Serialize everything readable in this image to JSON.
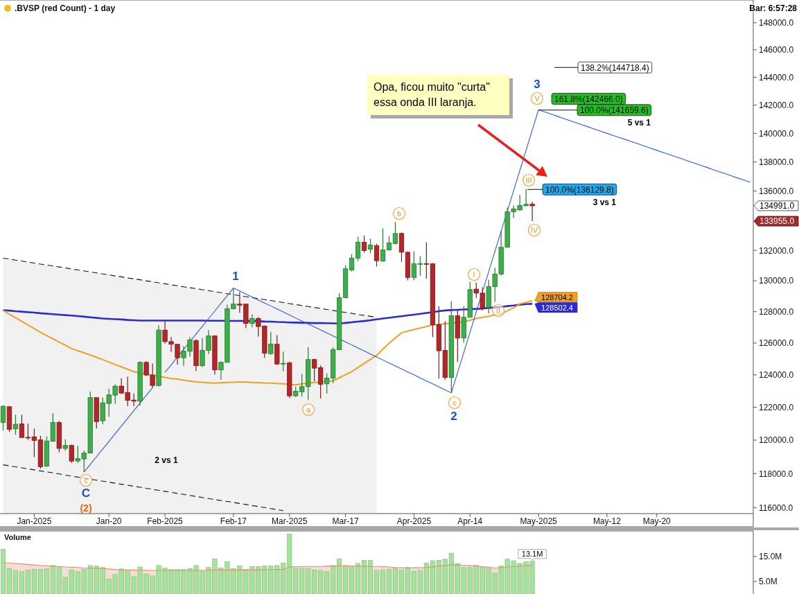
{
  "chart_data": [
    {
      "type": "candlestick",
      "title": ".BVSP (red Count) - 1 day",
      "categories": [
        null,
        null,
        null,
        null,
        null,
        "Jan-2025",
        null,
        null,
        null,
        null,
        null,
        null,
        null,
        null,
        null,
        null,
        null,
        "Jan-20",
        null,
        null,
        null,
        null,
        null,
        null,
        null,
        null,
        "Feb-2025",
        null,
        null,
        null,
        null,
        null,
        null,
        null,
        null,
        null,
        null,
        "Feb-17",
        null,
        null,
        null,
        null,
        null,
        null,
        null,
        null,
        "Mar-2025",
        null,
        null,
        null,
        null,
        null,
        null,
        null,
        null,
        "Mar-17",
        null,
        null,
        null,
        null,
        null,
        null,
        null,
        null,
        null,
        null,
        "Apr-2025",
        null,
        null,
        null,
        null,
        null,
        null,
        null,
        null,
        "Apr-14",
        null,
        null,
        null,
        null,
        null,
        null,
        null,
        null,
        null,
        null,
        "May-2025",
        null,
        null,
        null,
        null,
        null,
        null,
        null,
        null,
        null,
        null,
        "May-12",
        null,
        null,
        null,
        null,
        null,
        null,
        null,
        "May-20",
        null,
        null,
        null,
        null,
        null,
        null,
        null,
        null,
        null,
        null,
        null,
        null,
        null,
        null,
        null
      ],
      "ohlc": [
        [
          121070,
          122130,
          120580,
          122060
        ],
        [
          122030,
          122060,
          120490,
          120650
        ],
        [
          120680,
          121540,
          120330,
          120960
        ],
        [
          120980,
          121540,
          120150,
          120160
        ],
        [
          120170,
          121000,
          120020,
          120130
        ],
        [
          120200,
          120700,
          118980,
          119980
        ],
        [
          120020,
          120260,
          118300,
          118410
        ],
        [
          118440,
          120230,
          118410,
          119950
        ],
        [
          119930,
          121640,
          119900,
          121070
        ],
        [
          121070,
          121160,
          119260,
          119500
        ],
        [
          119500,
          120050,
          119360,
          119680
        ],
        [
          119680,
          119730,
          118640,
          118740
        ],
        [
          118750,
          119650,
          118640,
          118890
        ],
        [
          118870,
          119370,
          118090,
          119220
        ],
        [
          119220,
          122960,
          119200,
          122590
        ],
        [
          122590,
          122600,
          120700,
          121120
        ],
        [
          121170,
          122600,
          120960,
          122270
        ],
        [
          122230,
          123130,
          121420,
          122760
        ],
        [
          122740,
          123410,
          122200,
          123300
        ],
        [
          123300,
          123800,
          122810,
          122870
        ],
        [
          122910,
          123890,
          122060,
          122420
        ],
        [
          122440,
          122840,
          122060,
          122370
        ],
        [
          122370,
          124850,
          122100,
          124780
        ],
        [
          124780,
          124850,
          123920,
          123990
        ],
        [
          123990,
          124710,
          123200,
          123340
        ],
        [
          123340,
          127120,
          123270,
          126820
        ],
        [
          126820,
          127420,
          125970,
          126090
        ],
        [
          126090,
          126380,
          125440,
          125920
        ],
        [
          125920,
          125930,
          124640,
          125070
        ],
        [
          125070,
          125800,
          124570,
          125480
        ],
        [
          125480,
          126380,
          125140,
          126190
        ],
        [
          126160,
          126240,
          124230,
          124570
        ],
        [
          124570,
          126310,
          124490,
          125540
        ],
        [
          125540,
          126820,
          125290,
          126450
        ],
        [
          126450,
          126460,
          124030,
          124310
        ],
        [
          124310,
          124840,
          123700,
          124780
        ],
        [
          124780,
          128450,
          124760,
          128190
        ],
        [
          128190,
          129530,
          128150,
          128490
        ],
        [
          128490,
          129270,
          127930,
          128420
        ],
        [
          128490,
          128500,
          126940,
          127240
        ],
        [
          127240,
          127830,
          127000,
          127560
        ],
        [
          127560,
          127650,
          126410,
          127050
        ],
        [
          127080,
          127120,
          125070,
          125360
        ],
        [
          125330,
          126710,
          125260,
          125940
        ],
        [
          125920,
          126500,
          124620,
          124680
        ],
        [
          124700,
          125460,
          124230,
          124720
        ],
        [
          124750,
          124840,
          122560,
          122700
        ],
        [
          122700,
          123270,
          122630,
          122980
        ],
        [
          122950,
          124060,
          122650,
          123270
        ],
        [
          123270,
          125740,
          122460,
          124960
        ],
        [
          124960,
          125010,
          123600,
          124420
        ],
        [
          124450,
          124590,
          122530,
          123410
        ],
        [
          123440,
          124090,
          122840,
          123800
        ],
        [
          123800,
          125720,
          123490,
          125580
        ],
        [
          125580,
          129200,
          125560,
          128900
        ],
        [
          128900,
          131020,
          128860,
          130790
        ],
        [
          130710,
          131760,
          130620,
          131490
        ],
        [
          131490,
          132910,
          131300,
          132540
        ],
        [
          132540,
          133000,
          131850,
          131990
        ],
        [
          132080,
          132770,
          131810,
          132360
        ],
        [
          132310,
          132450,
          130940,
          131320
        ],
        [
          131290,
          133470,
          131260,
          132040
        ],
        [
          132040,
          132960,
          131990,
          132500
        ],
        [
          132460,
          133900,
          132390,
          133130
        ],
        [
          133130,
          133190,
          131240,
          131880
        ],
        [
          131880,
          131930,
          130030,
          130220
        ],
        [
          130220,
          131940,
          130030,
          131120
        ],
        [
          131100,
          131620,
          130330,
          131130
        ],
        [
          131130,
          132540,
          130140,
          131100
        ],
        [
          131120,
          131160,
          126380,
          127160
        ],
        [
          127160,
          128350,
          123770,
          125510
        ],
        [
          125540,
          127390,
          123700,
          123840
        ],
        [
          123840,
          128680,
          122880,
          127740
        ],
        [
          127740,
          128100,
          124810,
          126310
        ],
        [
          126310,
          128350,
          126020,
          127640
        ],
        [
          127640,
          129930,
          127610,
          129430
        ],
        [
          129460,
          129880,
          128870,
          129200
        ],
        [
          129200,
          129580,
          128080,
          128230
        ],
        [
          128280,
          130070,
          127890,
          129620
        ],
        [
          129620,
          130860,
          128630,
          130440
        ],
        [
          130440,
          133310,
          130350,
          132210
        ],
        [
          132210,
          134870,
          132170,
          134590
        ],
        [
          134590,
          135010,
          134170,
          134780
        ],
        [
          134710,
          135730,
          134690,
          135020
        ],
        [
          135000,
          136130,
          134950,
          135100
        ],
        [
          135100,
          135260,
          133955,
          134991
        ],
        null,
        null,
        null,
        null,
        null,
        null,
        null,
        null,
        null,
        null,
        null,
        null,
        null,
        null,
        null,
        null,
        null,
        null,
        null,
        null,
        null,
        null,
        null,
        null,
        null,
        null,
        null,
        null,
        null,
        null,
        null,
        null,
        null,
        null,
        null
      ],
      "colors": [
        "#3caf49",
        "#b3262a",
        "#3caf49",
        "#b3262a",
        "#b3262a",
        "#b3262a",
        "#b3262a",
        "#3caf49",
        "#3caf49",
        "#b3262a",
        "#3caf49",
        "#b3262a",
        "#3caf49",
        "#3caf49",
        "#3caf49",
        "#b3262a",
        "#3caf49",
        "#3caf49",
        "#3caf49",
        "#b3262a",
        "#b3262a",
        "#b3262a",
        "#3caf49",
        "#b3262a",
        "#b3262a",
        "#3caf49",
        "#b3262a",
        "#b3262a",
        "#b3262a",
        "#3caf49",
        "#3caf49",
        "#b3262a",
        "#3caf49",
        "#3caf49",
        "#b3262a",
        "#3caf49",
        "#3caf49",
        "#3caf49",
        "#b3262a",
        "#b3262a",
        "#3caf49",
        "#b3262a",
        "#b3262a",
        "#3caf49",
        "#b3262a",
        "#3caf49",
        "#b3262a",
        "#3caf49",
        "#3caf49",
        "#3caf49",
        "#b3262a",
        "#b3262a",
        "#3caf49",
        "#3caf49",
        "#3caf49",
        "#3caf49",
        "#3caf49",
        "#3caf49",
        "#b3262a",
        "#3caf49",
        "#b3262a",
        "#3caf49",
        "#3caf49",
        "#3caf49",
        "#b3262a",
        "#b3262a",
        "#3caf49",
        "#3caf49",
        "#b3262a",
        "#b3262a",
        "#b3262a",
        "#b3262a",
        "#3caf49",
        "#b3262a",
        "#3caf49",
        "#3caf49",
        "#b3262a",
        "#b3262a",
        "#3caf49",
        "#3caf49",
        "#3caf49",
        "#3caf49",
        "#3caf49",
        "#3caf49",
        "#3caf49",
        "#b3262a",
        null,
        null,
        null,
        null,
        null,
        null,
        null,
        null,
        null,
        null,
        null,
        null,
        null,
        null,
        null,
        null,
        null,
        null,
        null,
        null,
        null,
        null,
        null,
        null,
        null,
        null,
        null,
        null,
        null,
        null,
        null,
        null,
        null,
        null,
        null
      ],
      "ylim": [
        115650,
        149700
      ],
      "yticks": [
        {
          "value": 116000,
          "label": "116000.0"
        },
        {
          "value": 118000,
          "label": "118000.0"
        },
        {
          "value": 120000,
          "label": "120000.0"
        },
        {
          "value": 122000,
          "label": "122000.0"
        },
        {
          "value": 124000,
          "label": "124000.0"
        },
        {
          "value": 126000,
          "label": "126000.0"
        },
        {
          "value": 128000,
          "label": "128000.0"
        },
        {
          "value": 130000,
          "label": "130000.0"
        },
        {
          "value": 132000,
          "label": "132000.0"
        },
        {
          "value": 136000,
          "label": "136000.0"
        },
        {
          "value": 138000,
          "label": "138000.0"
        },
        {
          "value": 140000,
          "label": "140000.0"
        },
        {
          "value": 142000,
          "label": "142000.0"
        },
        {
          "value": 144000,
          "label": "144000.0"
        },
        {
          "value": 146000,
          "label": "146000.0"
        },
        {
          "value": 148000,
          "label": "148000.0"
        }
      ],
      "log": true,
      "series": [
        {
          "type": "area",
          "color": "#111111",
          "line_style": "dashed",
          "values": [
            131490,
            131430,
            131360,
            131300,
            131230,
            131170,
            131100,
            131040,
            130970,
            130910,
            130840,
            130780,
            130710,
            130650,
            130580,
            130520,
            130450,
            130390,
            130320,
            130260,
            130190,
            130130,
            130070,
            130000,
            129940,
            129870,
            129810,
            129740,
            129680,
            129610,
            129550,
            129490,
            129420,
            129360,
            129290,
            129230,
            129160,
            129100,
            129040,
            128970,
            128910,
            128840,
            128780,
            128720,
            128650,
            128590,
            128520,
            128460,
            128400,
            128330,
            128270,
            128210,
            128140,
            128080,
            128010,
            127950,
            127890,
            127820,
            127760,
            127700,
            127630,
            null,
            null,
            null,
            null,
            null,
            null,
            null,
            null,
            null,
            null,
            null,
            null,
            null,
            null,
            null,
            null,
            null,
            null,
            null,
            null,
            null,
            null,
            null,
            null,
            null,
            null,
            null,
            null,
            null,
            null,
            null,
            null,
            null,
            null,
            null,
            null,
            null,
            null,
            null,
            null,
            null,
            null,
            null,
            null,
            null,
            null,
            null,
            null,
            null,
            null,
            null,
            null,
            null,
            null,
            null,
            null,
            null,
            null,
            null,
            null
          ]
        },
        {
          "type": "line",
          "color": "#2b2bd6",
          "values": [
            128100,
            128070,
            128030,
            128000,
            127970,
            127940,
            127900,
            127870,
            127840,
            127810,
            127780,
            127750,
            127720,
            127680,
            127640,
            127600,
            127560,
            127540,
            127520,
            127500,
            127470,
            127450,
            127430,
            127430,
            127430,
            127430,
            127430,
            127430,
            127430,
            127430,
            127430,
            127430,
            127430,
            127420,
            127420,
            127420,
            127410,
            127410,
            127410,
            127400,
            127400,
            127390,
            127370,
            127360,
            127340,
            127330,
            127310,
            127300,
            127290,
            127280,
            127270,
            127270,
            127260,
            127250,
            127240,
            127280,
            127320,
            127360,
            127400,
            127450,
            127510,
            127560,
            127610,
            127660,
            127710,
            127760,
            127810,
            127860,
            127920,
            127970,
            128030,
            128080,
            128100,
            128120,
            128140,
            128160,
            128180,
            128200,
            128240,
            128270,
            128310,
            128360,
            128400,
            128450,
            128490,
            128502.4,
            null,
            null,
            null,
            null,
            null,
            null,
            null,
            null,
            null,
            null,
            null,
            null,
            null,
            null,
            null,
            null,
            null,
            null,
            null,
            null,
            null,
            null,
            null,
            null,
            null,
            null,
            null,
            null,
            null,
            null,
            null,
            null,
            null,
            null,
            null
          ],
          "value_labels": [
            null,
            null,
            null,
            null,
            null,
            null,
            null,
            null,
            null,
            null,
            null,
            null,
            null,
            null,
            null,
            null,
            null,
            null,
            null,
            null,
            null,
            null,
            null,
            null,
            null,
            null,
            null,
            null,
            null,
            null,
            null,
            null,
            null,
            null,
            null,
            null,
            null,
            null,
            null,
            null,
            null,
            null,
            null,
            null,
            null,
            null,
            null,
            null,
            null,
            null,
            null,
            null,
            null,
            null,
            null,
            null,
            null,
            null,
            null,
            null,
            null,
            null,
            null,
            null,
            null,
            null,
            null,
            null,
            null,
            null,
            null,
            null,
            null,
            null,
            null,
            null,
            null,
            null,
            null,
            null,
            null,
            null,
            null,
            null,
            null,
            "128502.4",
            null,
            null,
            null,
            null,
            null,
            null,
            null,
            null,
            null,
            null,
            null,
            null,
            null,
            null,
            null,
            null,
            null,
            null,
            null,
            null,
            null,
            null,
            null,
            null,
            null,
            null,
            null,
            null,
            null,
            null,
            null,
            null,
            null,
            null,
            null
          ]
        },
        {
          "type": "line",
          "color": "#f0a020",
          "values": [
            128080,
            127850,
            127610,
            127380,
            127150,
            126910,
            126680,
            126470,
            126270,
            126060,
            125860,
            125650,
            125510,
            125380,
            125240,
            125100,
            124950,
            124800,
            124650,
            124500,
            124350,
            124200,
            124130,
            124060,
            123980,
            123910,
            123840,
            123780,
            123730,
            123670,
            123620,
            123560,
            123540,
            123510,
            123490,
            123510,
            123530,
            123540,
            123560,
            123550,
            123530,
            123520,
            123500,
            123490,
            123460,
            123440,
            123410,
            123380,
            123440,
            123490,
            123530,
            123560,
            123600,
            123630,
            123820,
            124010,
            124200,
            124460,
            124710,
            124970,
            125220,
            125610,
            125990,
            126320,
            126650,
            126750,
            126850,
            126950,
            127050,
            127150,
            127190,
            127230,
            127260,
            127300,
            127340,
            127450,
            127560,
            127640,
            127710,
            127790,
            127860,
            128060,
            128250,
            128500,
            128600,
            128704.2,
            null,
            null,
            null,
            null,
            null,
            null,
            null,
            null,
            null,
            null,
            null,
            null,
            null,
            null,
            null,
            null,
            null,
            null,
            null,
            null,
            null,
            null,
            null,
            null,
            null,
            null,
            null,
            null,
            null,
            null,
            null,
            null,
            null,
            null,
            null
          ],
          "value_labels": [
            null,
            null,
            null,
            null,
            null,
            null,
            null,
            null,
            null,
            null,
            null,
            null,
            null,
            null,
            null,
            null,
            null,
            null,
            null,
            null,
            null,
            null,
            null,
            null,
            null,
            null,
            null,
            null,
            null,
            null,
            null,
            null,
            null,
            null,
            null,
            null,
            null,
            null,
            null,
            null,
            null,
            null,
            null,
            null,
            null,
            null,
            null,
            null,
            null,
            null,
            null,
            null,
            null,
            null,
            null,
            null,
            null,
            null,
            null,
            null,
            null,
            null,
            null,
            null,
            null,
            null,
            null,
            null,
            null,
            null,
            null,
            null,
            null,
            null,
            null,
            null,
            null,
            null,
            null,
            null,
            null,
            null,
            null,
            null,
            null,
            "128704.2",
            null,
            null,
            null,
            null,
            null,
            null,
            null,
            null,
            null,
            null,
            null,
            null,
            null,
            null,
            null,
            null,
            null,
            null,
            null,
            null,
            null,
            null,
            null,
            null,
            null,
            null,
            null,
            null,
            null,
            null,
            null,
            null,
            null,
            null,
            null
          ]
        },
        {
          "type": "line",
          "color": "#2a5bd7",
          "values": [
            null,
            null,
            null,
            null,
            null,
            null,
            null,
            null,
            null,
            null,
            null,
            null,
            null,
            118090,
            118550,
            119000,
            119460,
            119920,
            120390,
            120850,
            121320,
            121790,
            122260,
            122730,
            123200,
            null,
            124160,
            124630,
            125120,
            125600,
            126080,
            126570,
            127060,
            127550,
            128040,
            128540,
            129030,
            129530,
            129340,
            129140,
            128950,
            128750,
            128560,
            128370,
            128170,
            127980,
            127790,
            127590,
            127400,
            127210,
            127020,
            126830,
            126640,
            126450,
            126260,
            126070,
            125880,
            125690,
            125500,
            125310,
            125120,
            124930,
            124740,
            124560,
            124370,
            124180,
            124000,
            123810,
            123620,
            123440,
            123250,
            123070,
            122880,
            124140,
            125400,
            126680,
            127980,
            129280,
            130600,
            131940,
            133280,
            134640,
            136020,
            137410,
            138810,
            140230,
            141659.6,
            141510,
            141360,
            141210,
            141060,
            140900,
            140750,
            140600,
            140450,
            140300,
            140150,
            140000,
            139850,
            139700,
            139560,
            139410,
            139260,
            139110,
            138960,
            138810,
            138660,
            138510,
            138370,
            138220,
            138070,
            137920,
            137780,
            137630,
            137480,
            137330,
            137190,
            137040,
            136890,
            136750,
            136600
          ]
        },
        {
          "type": "line",
          "color": "#111111",
          "line_style": "dashed",
          "values": [
            118520,
            118460,
            118400,
            118340,
            118280,
            118220,
            118160,
            118100,
            118040,
            117980,
            117910,
            117850,
            117790,
            117730,
            117670,
            117610,
            117550,
            117490,
            117430,
            117370,
            117310,
            117250,
            117190,
            117130,
            117070,
            117010,
            116950,
            116890,
            116830,
            116770,
            116710,
            116650,
            116590,
            116530,
            116470,
            116410,
            116360,
            116300,
            116240,
            116180,
            116120,
            116060,
            116000,
            115940,
            115880,
            115820,
            null,
            null,
            null,
            null,
            null,
            null,
            null,
            null,
            null,
            null,
            null,
            null,
            null,
            null,
            null,
            null,
            null,
            null,
            null,
            null,
            null,
            null,
            null,
            null,
            null,
            null,
            null,
            null,
            null,
            null,
            null,
            null,
            null,
            null,
            null,
            null,
            null,
            null,
            null,
            null,
            null,
            null,
            null,
            null,
            null,
            null,
            null,
            null,
            null,
            null,
            null,
            null,
            null,
            null,
            null,
            null,
            null,
            null,
            null,
            null,
            null,
            null,
            null,
            null,
            null,
            null,
            null,
            null,
            null,
            null,
            null,
            null,
            null,
            null,
            null
          ]
        }
      ],
      "annotations": [
        "Bar: 6:57:28",
        "Opa, ficou muito \"curta\"\nessa onda III laranja.",
        "138.2%(144718.4)",
        "161.8%(142466.0)",
        "100.0%(141659.6)",
        "5 vs 1",
        "100.0%(136129.8)",
        "3 vs 1",
        "2 vs 1",
        "1",
        "2",
        "3",
        "C",
        "(2)",
        "c",
        "a",
        "b",
        "c",
        "I",
        "II",
        "III",
        "IV",
        "V",
        "134991.0",
        "133955.0"
      ]
    },
    {
      "type": "bar",
      "title": "Volume",
      "categories": [
        null,
        null,
        null,
        null,
        null,
        null,
        null,
        null,
        null,
        null,
        null,
        null,
        null,
        null,
        null,
        null,
        null,
        null,
        null,
        null,
        null,
        null,
        null,
        null,
        null,
        null,
        null,
        null,
        null,
        null,
        null,
        null,
        null,
        null,
        null,
        null,
        null,
        null,
        null,
        null,
        null,
        null,
        null,
        null,
        null,
        null,
        null,
        null,
        null,
        null,
        null,
        null,
        null,
        null,
        null,
        null,
        null,
        null,
        null,
        null,
        null,
        null,
        null,
        null,
        null,
        null,
        null,
        null,
        null,
        null,
        null,
        null,
        null,
        null,
        null,
        null,
        null,
        null,
        null,
        null,
        null,
        null,
        null,
        null,
        null,
        null,
        null,
        null,
        null,
        null,
        null,
        null,
        null,
        null,
        null,
        null,
        null,
        null,
        null,
        null,
        null,
        null,
        null,
        null,
        null,
        null,
        null,
        null,
        null,
        null,
        null,
        null,
        null,
        null,
        null,
        null,
        null,
        null,
        null,
        null,
        null
      ],
      "ylim": [
        0,
        25.2
      ],
      "yticks": [
        {
          "value": 5,
          "label": "5.0M"
        },
        {
          "value": 15,
          "label": "15.0M"
        }
      ],
      "tick_labels": "y",
      "series": [
        {
          "type": "area",
          "color": "#d8956a",
          "values": [
            12.6,
            12.4,
            12.2,
            12.0,
            11.8,
            11.6,
            11.4,
            11.3,
            11.1,
            11.0,
            10.8,
            10.7,
            10.6,
            10.4,
            10.3,
            10.2,
            10.1,
            10.0,
            9.8,
            9.7,
            9.6,
            9.6,
            9.5,
            9.5,
            9.4,
            9.4,
            9.4,
            9.4,
            9.4,
            9.4,
            9.4,
            9.4,
            9.5,
            9.5,
            9.6,
            9.6,
            9.6,
            9.6,
            9.6,
            9.6,
            9.6,
            9.6,
            9.7,
            9.7,
            9.8,
            9.8,
            10.8,
            10.9,
            10.9,
            11.0,
            11.0,
            11.0,
            11.1,
            11.1,
            11.2,
            11.2,
            11.2,
            11.1,
            11.1,
            11.0,
            11.0,
            10.9,
            10.8,
            10.6,
            10.5,
            10.4,
            10.5,
            10.5,
            10.6,
            10.9,
            11.2,
            11.4,
            11.7,
            11.6,
            11.5,
            11.4,
            11.2,
            10.9,
            10.7,
            10.4,
            10.6,
            10.8,
            11.0,
            11.1,
            11.3,
            11.4,
            null,
            null,
            null,
            null,
            null,
            null,
            null,
            null,
            null,
            null,
            null,
            null,
            null,
            null,
            null,
            null,
            null,
            null,
            null,
            null,
            null,
            null,
            null,
            null,
            null,
            null,
            null,
            null,
            null,
            null,
            null,
            null,
            null,
            null,
            null
          ]
        },
        {
          "color": "#a3e49c",
          "values": [
            17.9,
            10.2,
            9.4,
            8.9,
            9.6,
            9.8,
            9.8,
            10.0,
            11.4,
            10.6,
            6.7,
            9.6,
            8.9,
            9.8,
            11.4,
            11.2,
            10.6,
            5.9,
            7.8,
            10.0,
            9.6,
            6.9,
            10.8,
            8.0,
            7.2,
            11.4,
            10.4,
            9.8,
            9.8,
            9.8,
            10.2,
            11.4,
            9.1,
            10.6,
            14.0,
            10.4,
            12.9,
            10.2,
            11.2,
            9.8,
            11.0,
            11.0,
            11.2,
            11.2,
            11.4,
            12.4,
            24.0,
            10.2,
            10.2,
            10.2,
            9.6,
            9.4,
            8.9,
            11.4,
            14.0,
            11.4,
            11.2,
            12.2,
            13.5,
            13.5,
            9.4,
            9.6,
            9.8,
            10.4,
            9.6,
            10.6,
            9.1,
            9.4,
            12.4,
            13.3,
            13.5,
            13.9,
            16.3,
            12.2,
            10.6,
            10.6,
            11.4,
            10.6,
            10.2,
            8.3,
            11.2,
            13.9,
            13.3,
            12.2,
            12.9,
            13.1,
            null,
            null,
            null,
            null,
            null,
            null,
            null,
            null,
            null,
            null,
            null,
            null,
            null,
            null,
            null,
            null,
            null,
            null,
            null,
            null,
            null,
            null,
            null,
            null,
            null,
            null,
            null,
            null,
            null,
            null,
            null,
            null,
            null,
            null,
            null
          ],
          "value_labels": [
            null,
            null,
            null,
            null,
            null,
            null,
            null,
            null,
            null,
            null,
            null,
            null,
            null,
            null,
            null,
            null,
            null,
            null,
            null,
            null,
            null,
            null,
            null,
            null,
            null,
            null,
            null,
            null,
            null,
            null,
            null,
            null,
            null,
            null,
            null,
            null,
            null,
            null,
            null,
            null,
            null,
            null,
            null,
            null,
            null,
            null,
            null,
            null,
            null,
            null,
            null,
            null,
            null,
            null,
            null,
            null,
            null,
            null,
            null,
            null,
            null,
            null,
            null,
            null,
            null,
            null,
            null,
            null,
            null,
            null,
            null,
            null,
            null,
            null,
            null,
            null,
            null,
            null,
            null,
            null,
            null,
            null,
            null,
            null,
            null,
            "13.1M",
            null,
            null,
            null,
            null,
            null,
            null,
            null,
            null,
            null,
            null,
            null,
            null,
            null,
            null,
            null,
            null,
            null,
            null,
            null,
            null,
            null,
            null,
            null,
            null,
            null,
            null,
            null,
            null,
            null,
            null,
            null,
            null,
            null,
            null,
            null
          ]
        }
      ]
    }
  ]
}
